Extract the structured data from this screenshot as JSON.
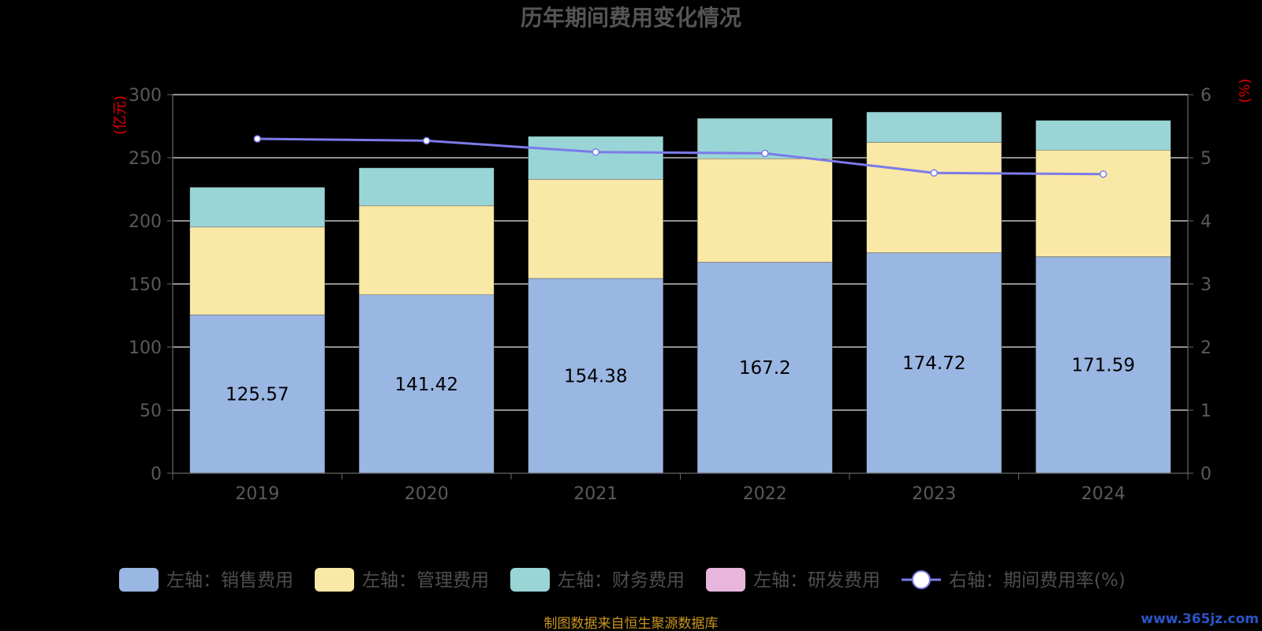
{
  "chart_data": {
    "type": "bar",
    "stacked": true,
    "title": "历年期间费用变化情况",
    "categories": [
      "2019",
      "2020",
      "2021",
      "2022",
      "2023",
      "2024"
    ],
    "left_axis": {
      "unit": "(亿元)",
      "ylim": [
        0,
        300
      ],
      "ticks": [
        "0",
        "50",
        "100",
        "150",
        "200",
        "250",
        "300"
      ]
    },
    "right_axis": {
      "unit": "(%)",
      "ylim": [
        0,
        6
      ],
      "ticks": [
        "0",
        "1",
        "2",
        "3",
        "4",
        "5",
        "6"
      ]
    },
    "series": [
      {
        "name": "左轴：销售费用",
        "type": "bar",
        "axis": "left",
        "color": "#9ab6e2",
        "values": [
          125.57,
          141.42,
          154.38,
          167.2,
          174.72,
          171.59
        ],
        "labels": [
          "125.57",
          "141.42",
          "154.38",
          "167.2",
          "174.72",
          "171.59"
        ]
      },
      {
        "name": "左轴：管理费用",
        "type": "bar",
        "axis": "left",
        "color": "#f9e8a6",
        "values": [
          69.5,
          70.5,
          78.5,
          82.0,
          87.5,
          84.5
        ]
      },
      {
        "name": "左轴：财务费用",
        "type": "bar",
        "axis": "left",
        "color": "#99d5d6",
        "values": [
          31.5,
          30.0,
          34.0,
          32.0,
          24.0,
          23.5
        ]
      },
      {
        "name": "左轴：研发费用",
        "type": "bar",
        "axis": "left",
        "color": "#e8b6dc",
        "values": [
          0,
          0,
          0,
          0,
          0,
          0
        ]
      },
      {
        "name": "右轴：期间费用率(%)",
        "type": "line",
        "axis": "right",
        "color": "#7b7be9",
        "values": [
          5.3,
          5.27,
          5.09,
          5.07,
          4.76,
          4.74
        ]
      }
    ],
    "grid": true,
    "legend": "bottom"
  },
  "footer": {
    "source": "制图数据来自恒生聚源数据库",
    "watermark": "www.365jz.com"
  }
}
